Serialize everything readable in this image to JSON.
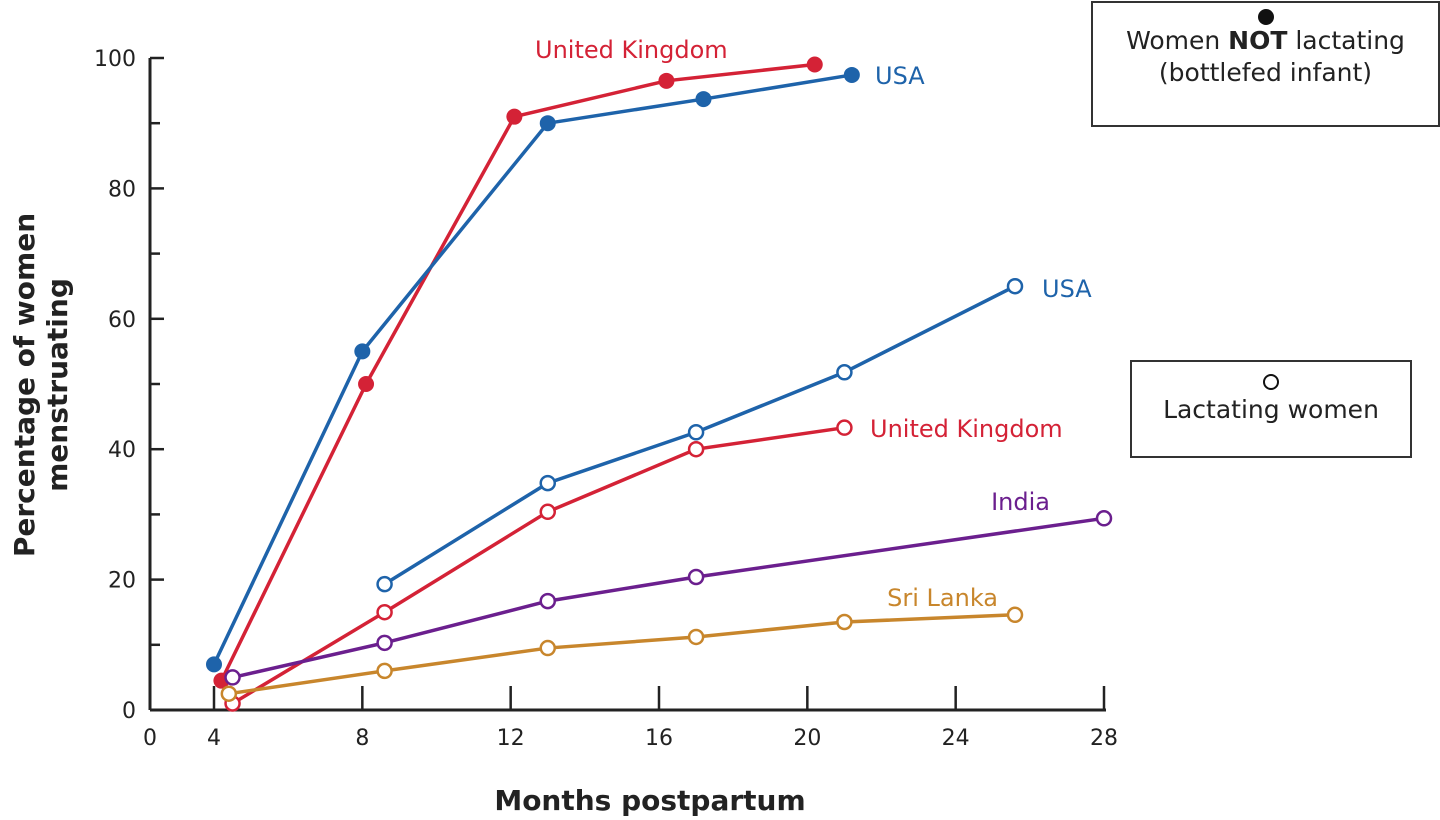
{
  "chart_data": {
    "type": "line",
    "title": "",
    "xlabel": "Months postpartum",
    "ylabel_line1": "Percentage of women",
    "ylabel_line2": "menstruating",
    "xlim": [
      0,
      28
    ],
    "ylim": [
      0,
      100
    ],
    "xticks": [
      0,
      4,
      8,
      12,
      16,
      20,
      24,
      28
    ],
    "yticks": [
      0,
      20,
      40,
      60,
      80,
      100
    ],
    "grid": false,
    "series": [
      {
        "name": "United Kingdom",
        "group": "not_lactating",
        "marker": "filled",
        "color": "#d42236",
        "x": [
          4.2,
          8.1,
          12.1,
          16.2,
          20.2
        ],
        "y": [
          4.5,
          50,
          91,
          96.5,
          99
        ]
      },
      {
        "name": "USA",
        "group": "not_lactating",
        "marker": "filled",
        "color": "#1e63aa",
        "x": [
          4,
          8,
          13,
          17.2,
          21.2
        ],
        "y": [
          7,
          55,
          90,
          93.7,
          97.4
        ]
      },
      {
        "name": "USA",
        "group": "lactating",
        "marker": "open",
        "color": "#1e63aa",
        "x": [
          8.6,
          13,
          17,
          21,
          25.6
        ],
        "y": [
          19.3,
          34.8,
          42.6,
          51.8,
          65
        ]
      },
      {
        "name": "United Kingdom",
        "group": "lactating",
        "marker": "open",
        "color": "#d42236",
        "x": [
          4.5,
          8.6,
          13,
          17,
          21
        ],
        "y": [
          1,
          15,
          30.4,
          40,
          43.3
        ]
      },
      {
        "name": "India",
        "group": "lactating",
        "marker": "open",
        "color": "#6b1f8e",
        "x": [
          4.5,
          8.6,
          13,
          17,
          28
        ],
        "y": [
          5,
          10.3,
          16.7,
          20.4,
          29.4
        ]
      },
      {
        "name": "Sri Lanka",
        "group": "lactating",
        "marker": "open",
        "color": "#c8862c",
        "x": [
          4.4,
          8.6,
          13,
          17,
          21,
          25.6
        ],
        "y": [
          2.5,
          6,
          9.5,
          11.2,
          13.5,
          14.6
        ]
      }
    ],
    "legend": {
      "filled": {
        "line1_pre": "Women ",
        "line1_bold": "NOT",
        "line1_post": " lactating",
        "line2": "(bottlefed infant)"
      },
      "open": {
        "text": "Lactating women"
      }
    }
  }
}
